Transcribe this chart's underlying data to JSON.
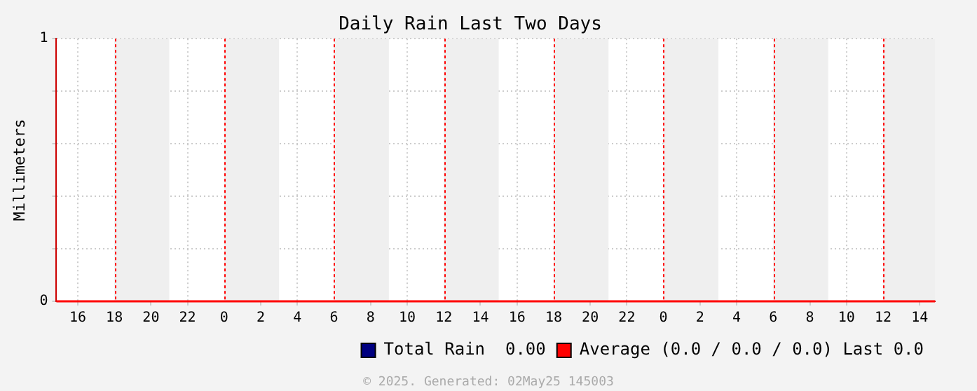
{
  "chart_data": {
    "type": "line",
    "title": "Daily Rain Last Two Days",
    "ylabel": "Millimeters",
    "annotations": [
      "© 2025. Generated: 02May25 145003"
    ],
    "x": [
      "2025-04-30T14:50",
      "2025-05-02T14:50"
    ],
    "xlim": [
      "2025-04-30T14:50",
      "2025-05-02T14:50"
    ],
    "xticks": [
      {
        "value": "2025-04-30T16:00",
        "label": "16"
      },
      {
        "value": "2025-04-30T18:00",
        "label": "18"
      },
      {
        "value": "2025-04-30T20:00",
        "label": "20"
      },
      {
        "value": "2025-04-30T22:00",
        "label": "22"
      },
      {
        "value": "2025-05-01T00:00",
        "label": "0"
      },
      {
        "value": "2025-05-01T02:00",
        "label": "2"
      },
      {
        "value": "2025-05-01T04:00",
        "label": "4"
      },
      {
        "value": "2025-05-01T06:00",
        "label": "6"
      },
      {
        "value": "2025-05-01T08:00",
        "label": "8"
      },
      {
        "value": "2025-05-01T10:00",
        "label": "10"
      },
      {
        "value": "2025-05-01T12:00",
        "label": "12"
      },
      {
        "value": "2025-05-01T14:00",
        "label": "14"
      },
      {
        "value": "2025-05-01T16:00",
        "label": "16"
      },
      {
        "value": "2025-05-01T18:00",
        "label": "18"
      },
      {
        "value": "2025-05-01T20:00",
        "label": "20"
      },
      {
        "value": "2025-05-01T22:00",
        "label": "22"
      },
      {
        "value": "2025-05-02T00:00",
        "label": "0"
      },
      {
        "value": "2025-05-02T02:00",
        "label": "2"
      },
      {
        "value": "2025-05-02T04:00",
        "label": "4"
      },
      {
        "value": "2025-05-02T06:00",
        "label": "6"
      },
      {
        "value": "2025-05-02T08:00",
        "label": "8"
      },
      {
        "value": "2025-05-02T10:00",
        "label": "10"
      },
      {
        "value": "2025-05-02T12:00",
        "label": "12"
      },
      {
        "value": "2025-05-02T14:00",
        "label": "14"
      }
    ],
    "ylim": [
      0,
      1
    ],
    "yticks": [
      0,
      {
        "value": 0.2,
        "label": null
      },
      {
        "value": 0.4,
        "label": null
      },
      {
        "value": 0.6,
        "label": null
      },
      {
        "value": 0.8,
        "label": null
      },
      1
    ],
    "grid": true,
    "legend": "bottom right",
    "marker": "none",
    "line_style": "solid",
    "bands": [
      {
        "axis": "x",
        "from": "2025-04-30T18:00",
        "to": "2025-04-30T21:00",
        "color": "#efefef"
      },
      {
        "axis": "x",
        "from": "2025-05-01T00:00",
        "to": "2025-05-01T03:00",
        "color": "#efefef"
      },
      {
        "axis": "x",
        "from": "2025-05-01T06:00",
        "to": "2025-05-01T09:00",
        "color": "#efefef"
      },
      {
        "axis": "x",
        "from": "2025-05-01T12:00",
        "to": "2025-05-01T15:00",
        "color": "#efefef"
      },
      {
        "axis": "x",
        "from": "2025-05-01T18:00",
        "to": "2025-05-01T21:00",
        "color": "#efefef"
      },
      {
        "axis": "x",
        "from": "2025-05-02T00:00",
        "to": "2025-05-02T03:00",
        "color": "#efefef"
      },
      {
        "axis": "x",
        "from": "2025-05-02T06:00",
        "to": "2025-05-02T09:00",
        "color": "#efefef"
      },
      {
        "axis": "x",
        "from": "2025-05-02T12:00",
        "to": "2025-05-02T14:50",
        "color": "#efefef"
      }
    ],
    "ref_lines": [
      {
        "axis": "x",
        "value": "2025-04-30T18:00",
        "color": "#ff0000",
        "line_style": "dotted"
      },
      {
        "axis": "x",
        "value": "2025-05-01T00:00",
        "color": "#ff0000",
        "line_style": "dotted"
      },
      {
        "axis": "x",
        "value": "2025-05-01T06:00",
        "color": "#ff0000",
        "line_style": "dotted"
      },
      {
        "axis": "x",
        "value": "2025-05-01T12:00",
        "color": "#ff0000",
        "line_style": "dotted"
      },
      {
        "axis": "x",
        "value": "2025-05-01T18:00",
        "color": "#ff0000",
        "line_style": "dotted"
      },
      {
        "axis": "x",
        "value": "2025-05-02T00:00",
        "color": "#ff0000",
        "line_style": "dotted"
      },
      {
        "axis": "x",
        "value": "2025-05-02T06:00",
        "color": "#ff0000",
        "line_style": "dotted"
      },
      {
        "axis": "x",
        "value": "2025-05-02T12:00",
        "color": "#ff0000",
        "line_style": "dotted"
      }
    ],
    "series": [
      {
        "name": "Total Rain  0.00",
        "color": "#000080",
        "values": [
          null,
          null
        ]
      },
      {
        "name": "Average (0.0 / 0.0 / 0.0) Last 0.0",
        "color": "#ff0000",
        "values": [
          0,
          0
        ]
      }
    ]
  }
}
